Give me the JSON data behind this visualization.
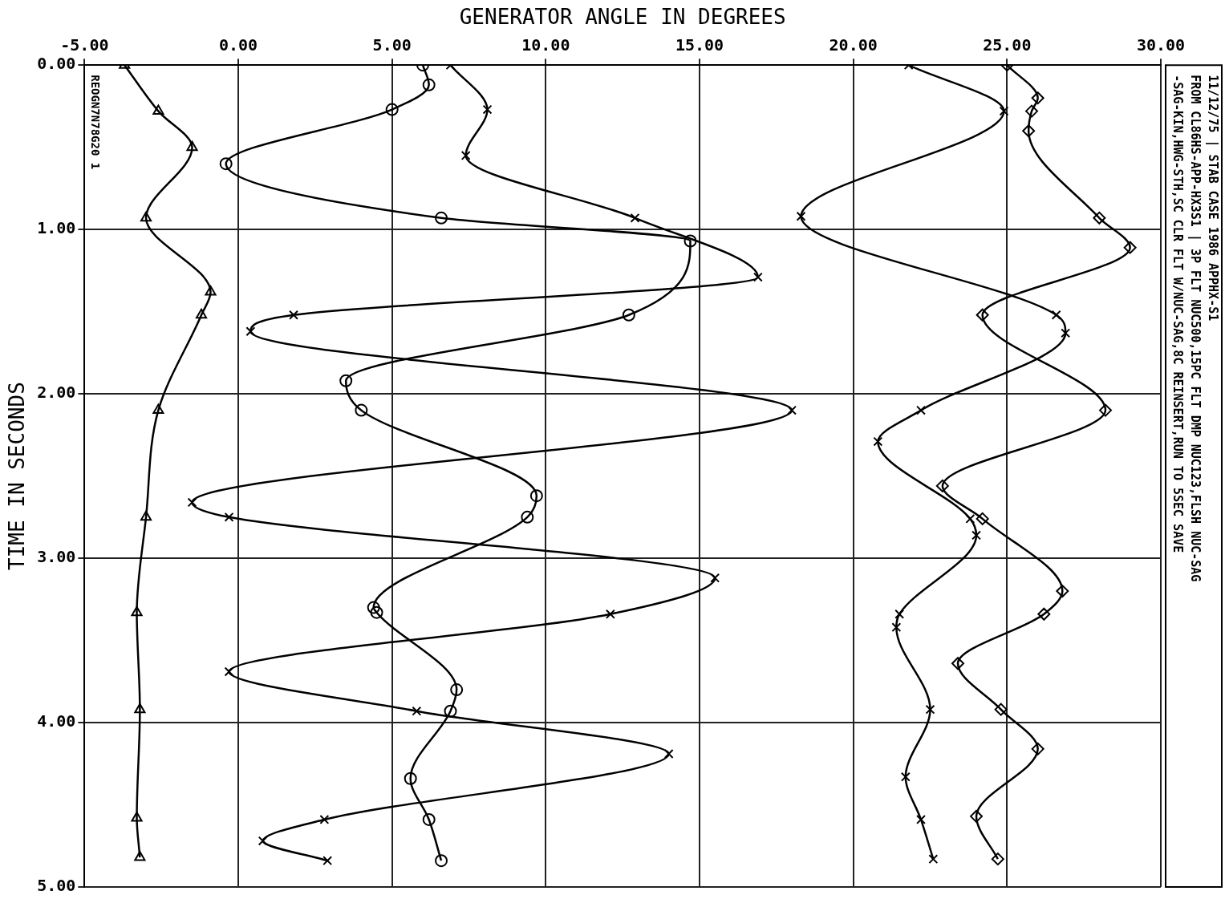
{
  "chart_data": {
    "type": "line",
    "xlabel": "GENERATOR ANGLE IN DEGREES",
    "ylabel": "TIME IN SECONDS",
    "xlim": [
      -5,
      30
    ],
    "xticks": [
      {
        "value": -5,
        "label": "-5.00"
      },
      {
        "value": 0,
        "label": "0.00"
      },
      {
        "value": 5,
        "label": "5.00"
      },
      {
        "value": 10,
        "label": "10.00"
      },
      {
        "value": 15,
        "label": "15.00"
      },
      {
        "value": 20,
        "label": "20.00"
      },
      {
        "value": 25,
        "label": "25.00"
      },
      {
        "value": 30,
        "label": "30.00"
      }
    ],
    "ylim": [
      5,
      0
    ],
    "yticks": [
      {
        "value": 0,
        "label": "0.00"
      },
      {
        "value": 1,
        "label": "1.00"
      },
      {
        "value": 2,
        "label": "2.00"
      },
      {
        "value": 3,
        "label": "3.00"
      },
      {
        "value": 4,
        "label": "4.00"
      },
      {
        "value": 5,
        "label": "5.00"
      }
    ],
    "grid": true,
    "legend": false,
    "line_style": "solid",
    "series": [
      {
        "color": "#000000",
        "marker": "triangle",
        "x": [
          -3.7,
          -2.6,
          -1.5,
          -3.0,
          -0.9,
          -1.2,
          -2.6,
          -3.0,
          -3.3,
          -3.2,
          -3.3,
          -3.2
        ],
        "values": [
          0,
          0.28,
          0.5,
          0.93,
          1.38,
          1.52,
          2.1,
          2.75,
          3.33,
          3.92,
          4.58,
          4.82
        ]
      },
      {
        "color": "#000000",
        "marker": "circle",
        "x": [
          6.0,
          6.2,
          5.0,
          -0.4,
          6.6,
          14.7,
          12.7,
          3.5,
          4.0,
          9.7,
          9.4,
          4.4,
          4.5,
          7.1,
          6.9,
          5.6,
          6.2,
          6.6
        ],
        "values": [
          0,
          0.12,
          0.27,
          0.6,
          0.93,
          1.07,
          1.52,
          1.92,
          2.1,
          2.62,
          2.75,
          3.3,
          3.33,
          3.8,
          3.93,
          4.34,
          4.59,
          4.84
        ]
      },
      {
        "color": "#000000",
        "marker": "cross",
        "x": [
          6.9,
          8.1,
          7.4,
          12.9,
          16.9,
          1.8,
          0.4,
          18.0,
          -1.5,
          -0.3,
          15.5,
          12.1,
          -0.3,
          5.8,
          14.0,
          2.8,
          0.8,
          2.9
        ],
        "values": [
          0,
          0.27,
          0.55,
          0.93,
          1.29,
          1.52,
          1.62,
          2.1,
          2.66,
          2.75,
          3.12,
          3.34,
          3.69,
          3.93,
          4.19,
          4.59,
          4.72,
          4.84
        ]
      },
      {
        "color": "#000000",
        "marker": "cross",
        "x": [
          21.8,
          24.9,
          18.3,
          26.6,
          26.9,
          22.2,
          20.8,
          23.8,
          24.0,
          21.5,
          21.4,
          22.5,
          21.7,
          22.2,
          22.6
        ],
        "values": [
          0,
          0.28,
          0.92,
          1.52,
          1.63,
          2.1,
          2.29,
          2.76,
          2.86,
          3.34,
          3.42,
          3.92,
          4.33,
          4.59,
          4.83
        ]
      },
      {
        "color": "#000000",
        "marker": "diamond",
        "x": [
          25.0,
          26.0,
          25.8,
          25.7,
          28.0,
          29.0,
          24.2,
          28.2,
          22.9,
          24.2,
          26.8,
          26.2,
          23.4,
          24.8,
          26.0,
          24.0,
          24.7
        ],
        "values": [
          0,
          0.2,
          0.28,
          0.4,
          0.93,
          1.11,
          1.52,
          2.1,
          2.56,
          2.76,
          3.2,
          3.34,
          3.64,
          3.92,
          4.16,
          4.57,
          4.83
        ]
      }
    ],
    "annotations": [
      "11/12/75 | STAB CASE 1986 APPHX-S1",
      "FROM CL86HS-APP-HX3S1 | 3P FLT NUC500,15PC FLT DMP NUC123,FLSH NUC-SAG",
      "-SAG-KIN,HWG-STH,SC CLR FLT W/NUC-SAG,8C REINSERT,RUN TO 5SEC SAVE",
      "REOGN7N78G20 1"
    ]
  }
}
